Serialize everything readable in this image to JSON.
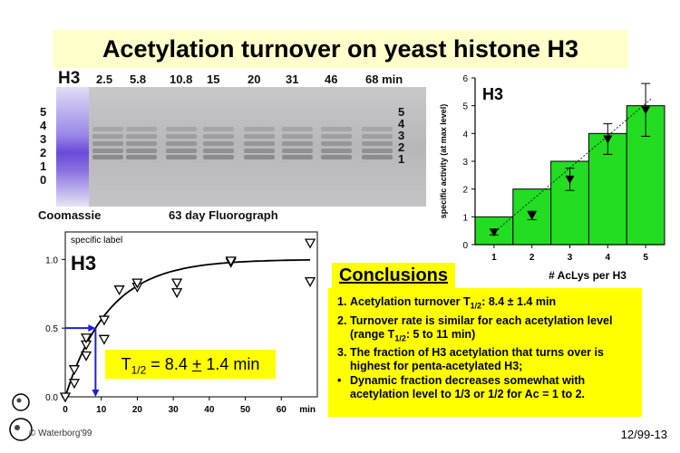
{
  "title": "Acetylation turnover on yeast histone H3",
  "gel": {
    "lane_label": "H3",
    "times": [
      "2.5",
      "5.8",
      "10.8",
      "15",
      "20",
      "31",
      "46",
      "68 min"
    ],
    "left_ticks": [
      "5",
      "4",
      "3",
      "2",
      "1",
      "0"
    ],
    "right_ticks": [
      "5",
      "4",
      "3",
      "2",
      "1"
    ],
    "left_caption": "Coomassie",
    "right_caption": "63 day Fluorograph"
  },
  "chart_data": [
    {
      "type": "bar",
      "categories": [
        "1",
        "2",
        "3",
        "4",
        "5"
      ],
      "values": [
        1,
        2,
        3,
        4,
        5
      ],
      "points": [
        {
          "x": 1,
          "y": 0.45,
          "err": 0.1
        },
        {
          "x": 2,
          "y": 1.05,
          "err": 0.15
        },
        {
          "x": 3,
          "y": 2.35,
          "err": 0.4
        },
        {
          "x": 4,
          "y": 3.8,
          "err": 0.55
        },
        {
          "x": 5,
          "y": 4.85,
          "err": 0.95
        }
      ],
      "title": "H3",
      "xlabel": "# AcLys per H3",
      "ylabel": "specific activity (at max level)",
      "ylim": [
        0,
        6
      ],
      "yticks": [
        "0",
        "1",
        "2",
        "3",
        "4",
        "5",
        "6"
      ],
      "bar_color": "#22dd22"
    },
    {
      "type": "scatter",
      "title": "H3",
      "ylabel": "specific label",
      "x_unit": "min",
      "xlim": [
        0,
        70
      ],
      "ylim": [
        0,
        1.2
      ],
      "xticks": [
        "0",
        "10",
        "20",
        "30",
        "40",
        "50",
        "60"
      ],
      "yticks": [
        "0.0",
        "0.5",
        "1.0"
      ],
      "points": [
        {
          "x": 0,
          "y": 0.0
        },
        {
          "x": 2.5,
          "y": 0.1
        },
        {
          "x": 2.5,
          "y": 0.2
        },
        {
          "x": 5.8,
          "y": 0.3
        },
        {
          "x": 5.8,
          "y": 0.38
        },
        {
          "x": 5.8,
          "y": 0.43
        },
        {
          "x": 10.8,
          "y": 0.42
        },
        {
          "x": 10.8,
          "y": 0.56
        },
        {
          "x": 15,
          "y": 0.78
        },
        {
          "x": 20,
          "y": 0.8
        },
        {
          "x": 20,
          "y": 0.83
        },
        {
          "x": 31,
          "y": 0.76
        },
        {
          "x": 31,
          "y": 0.83
        },
        {
          "x": 46,
          "y": 0.98
        },
        {
          "x": 46,
          "y": 0.99
        },
        {
          "x": 68,
          "y": 1.12
        },
        {
          "x": 68,
          "y": 0.84
        }
      ],
      "fit_half_life": 8.4,
      "fit_plateau": 1.0,
      "marker_x": 8.4,
      "marker_y": 0.5,
      "marker_color": "#1f1fcf"
    }
  ],
  "half_life_label": {
    "prefix": "T",
    "sub": "1/2",
    "rest": " = 8.4 ",
    "pm": "+",
    "tail": " 1.4 min"
  },
  "conclusions": {
    "title": "Conclusions",
    "items": [
      {
        "num": "1.",
        "parts": [
          "Acetylation turnover T",
          "1/2",
          ": 8.4 ± 1.4 min"
        ]
      },
      {
        "num": "2.",
        "parts": [
          "Turnover rate is similar for each acetylation level (range T",
          "1/2",
          ": 5 to 11 min)"
        ]
      },
      {
        "num": "3.",
        "parts": [
          "The fraction of H3 acetylation that turns over is highest for penta-acetylated H3;"
        ]
      },
      {
        "num": "•",
        "parts": [
          "Dynamic fraction decreases somewhat with acetylation level to 1/3 or 1/2 for Ac = 1 to 2."
        ]
      }
    ]
  },
  "footer_code": "12/99-13",
  "copyright": "© Waterborg'99"
}
